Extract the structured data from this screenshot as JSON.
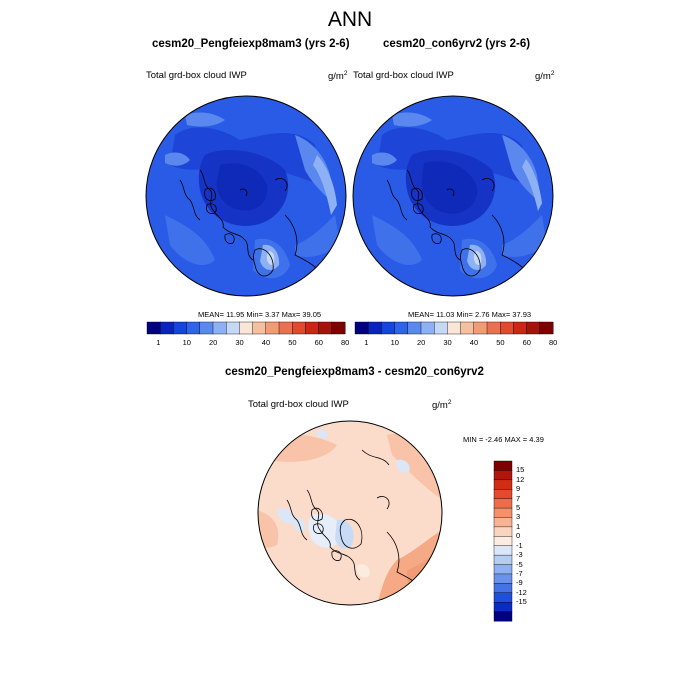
{
  "title": "ANN",
  "panels": [
    {
      "title": "cesm20_Pengfeiexp8mam3 (yrs 2-6)",
      "variable": "Total grd-box cloud IWP",
      "unit_base": "g/m",
      "unit_exp": "2",
      "stats": "MEAN=  11.95  Min=   3.37  Max=  39.05"
    },
    {
      "title": "cesm20_con6yrv2 (yrs 2-6)",
      "variable": "Total grd-box cloud IWP",
      "unit_base": "g/m",
      "unit_exp": "2",
      "stats": "MEAN=  11.03  Min=   2.76  Max=  37.93"
    }
  ],
  "top_colorbar": {
    "labels": [
      "1",
      "10",
      "20",
      "30",
      "40",
      "50",
      "60",
      "80"
    ],
    "colors": [
      "#00007f",
      "#0a23bd",
      "#1446dc",
      "#2e64e8",
      "#5a88ee",
      "#8eb0f4",
      "#c5d8f7",
      "#fbe5d8",
      "#f6c0a0",
      "#f29c76",
      "#ea7150",
      "#e04a2e",
      "#c82814",
      "#a4140a",
      "#7f0000"
    ]
  },
  "diff_panel": {
    "title": "cesm20_Pengfeiexp8mam3 - cesm20_con6yrv2",
    "variable": "Total grd-box cloud IWP",
    "unit_base": "g/m",
    "unit_exp": "2",
    "stats": "MIN =  -2.46 MAX =   4.39",
    "colorbar": {
      "labels": [
        "15",
        "12",
        "9",
        "7",
        "5",
        "3",
        "1",
        "0",
        "-1",
        "-3",
        "-5",
        "-7",
        "-9",
        "-12",
        "-15"
      ],
      "colors": [
        "#7f0000",
        "#b3150a",
        "#d02c16",
        "#e54a2c",
        "#f06c48",
        "#f58f6c",
        "#f8b294",
        "#fbd4c0",
        "#fcebdf",
        "#dbe6f8",
        "#b5cdf5",
        "#8fb1f1",
        "#6a92ec",
        "#4473e6",
        "#1f4fdb",
        "#0a2cc4",
        "#000080"
      ]
    }
  },
  "colors": {
    "map_base_blue": "#2a5be6",
    "map_deep_blue": "#0f2ab8",
    "diff_base": "#fbdccb"
  }
}
